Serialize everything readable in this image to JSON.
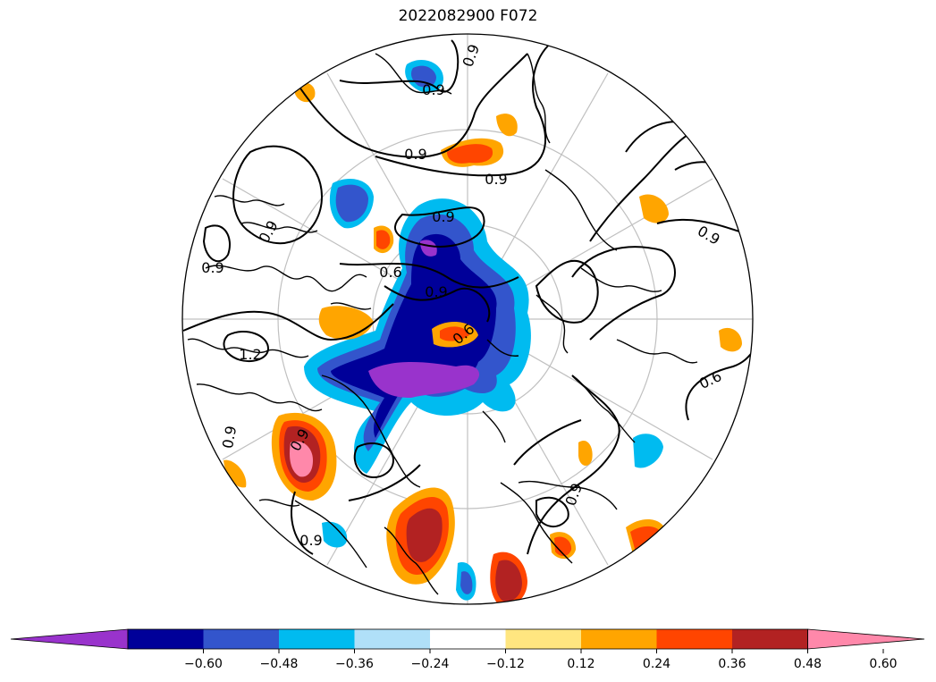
{
  "title": "2022082900 F072",
  "colorbar": {
    "colors": [
      "#9933cc",
      "#000099",
      "#3355cc",
      "#00bbf0",
      "#b0e0f8",
      "#ffffff",
      "#ffe680",
      "#ffa500",
      "#ff4500",
      "#b22222",
      "#ff88aa"
    ],
    "ticks": [
      "−0.60",
      "−0.48",
      "−0.36",
      "−0.24",
      "−0.12",
      "0.12",
      "0.24",
      "0.36",
      "0.48",
      "0.60"
    ]
  },
  "contour_labels": [
    "0.9",
    "0.9",
    "0.9",
    "0.9",
    "0.9",
    "0.9",
    "0.9",
    "0.9",
    "0.6",
    "0.9",
    "0.6",
    "0.6",
    "1.2",
    "0.9",
    "0.9",
    "0.9",
    "0.9"
  ]
}
